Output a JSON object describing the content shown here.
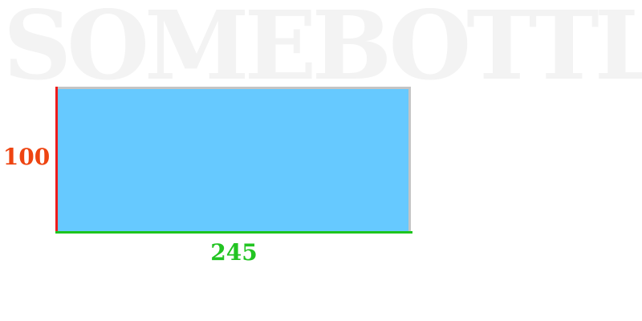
{
  "watermark": {
    "text": "SOMEBOTTLE"
  },
  "rectangle": {
    "height_value": "100",
    "width_value": "245",
    "fill_color": "#66c9ff",
    "border_color": "#c4c4c4",
    "height_edge_color": "#ee1c1c",
    "width_edge_color": "#1ec41e",
    "height_label_color": "#ee4411",
    "width_label_color": "#22c422"
  }
}
